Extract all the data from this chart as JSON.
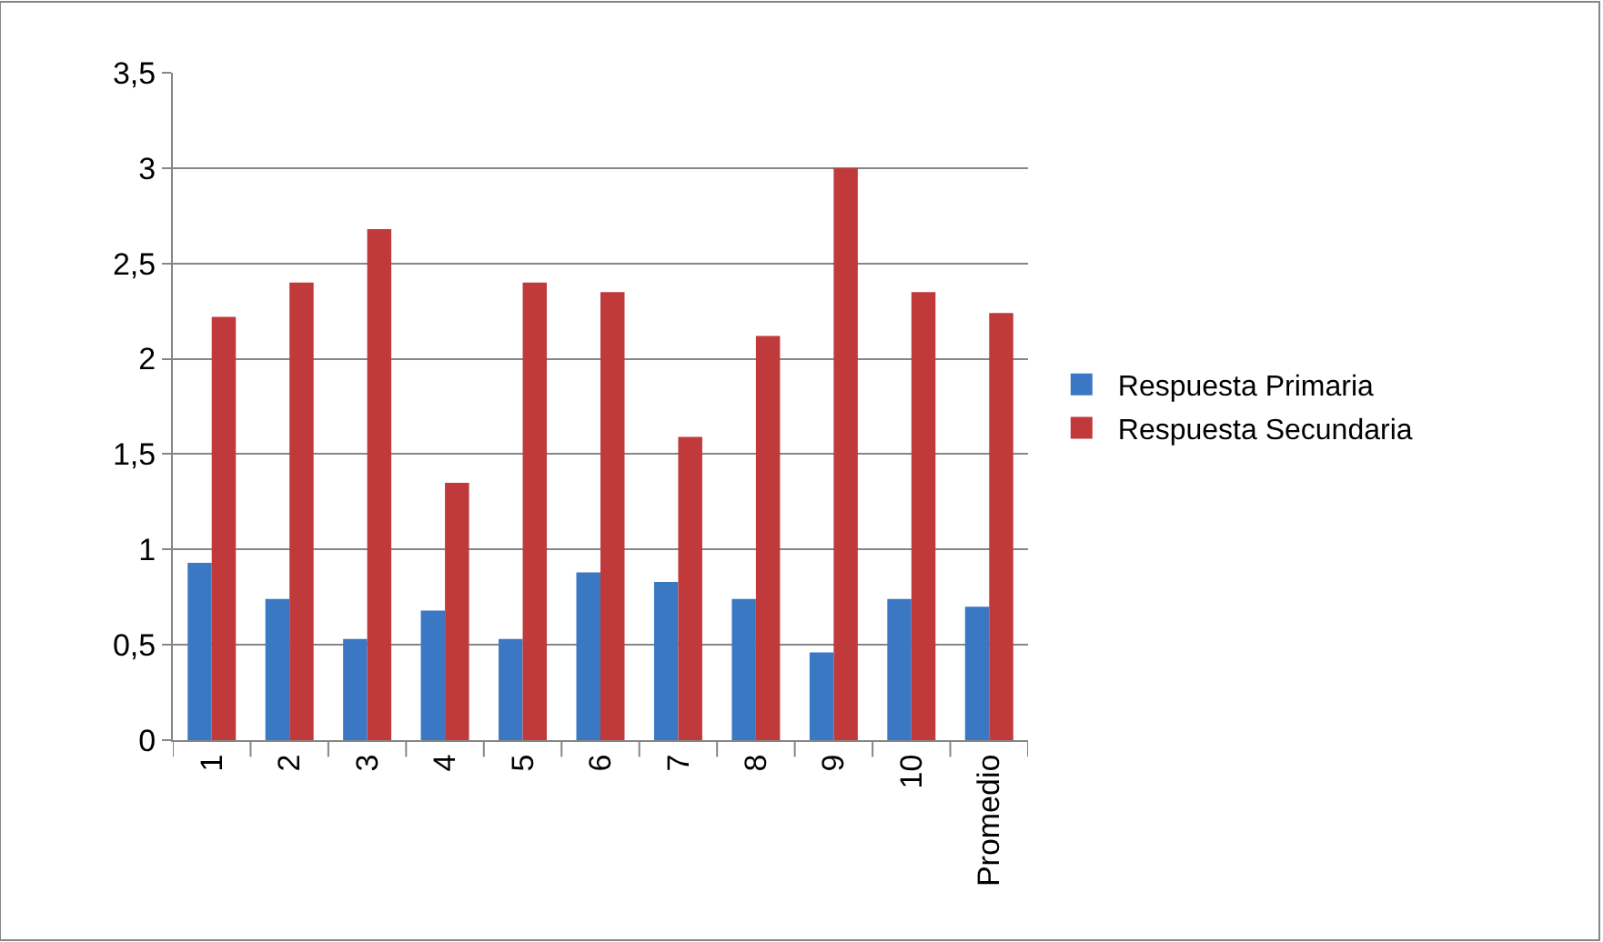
{
  "chart_data": {
    "type": "bar",
    "categories": [
      "1",
      "2",
      "3",
      "4",
      "5",
      "6",
      "7",
      "8",
      "9",
      "10",
      "Promedio"
    ],
    "series": [
      {
        "name": "Respuesta Primaria",
        "color": "#3b78c3",
        "values": [
          0.93,
          0.74,
          0.53,
          0.68,
          0.53,
          0.88,
          0.83,
          0.74,
          0.46,
          0.74,
          0.7
        ]
      },
      {
        "name": "Respuesta Secundaria",
        "color": "#c0393b",
        "values": [
          2.22,
          2.4,
          2.68,
          1.35,
          2.4,
          2.35,
          1.59,
          2.12,
          3.0,
          2.35,
          2.24
        ]
      }
    ],
    "ylim": [
      0,
      3.5
    ],
    "yticks": [
      {
        "value": 0,
        "label": "0"
      },
      {
        "value": 0.5,
        "label": "0,5"
      },
      {
        "value": 1,
        "label": "1"
      },
      {
        "value": 1.5,
        "label": "1,5"
      },
      {
        "value": 2,
        "label": "2"
      },
      {
        "value": 2.5,
        "label": "2,5"
      },
      {
        "value": 3,
        "label": "3"
      },
      {
        "value": 3.5,
        "label": "3,5"
      }
    ],
    "grid": "y",
    "legend": "right"
  }
}
